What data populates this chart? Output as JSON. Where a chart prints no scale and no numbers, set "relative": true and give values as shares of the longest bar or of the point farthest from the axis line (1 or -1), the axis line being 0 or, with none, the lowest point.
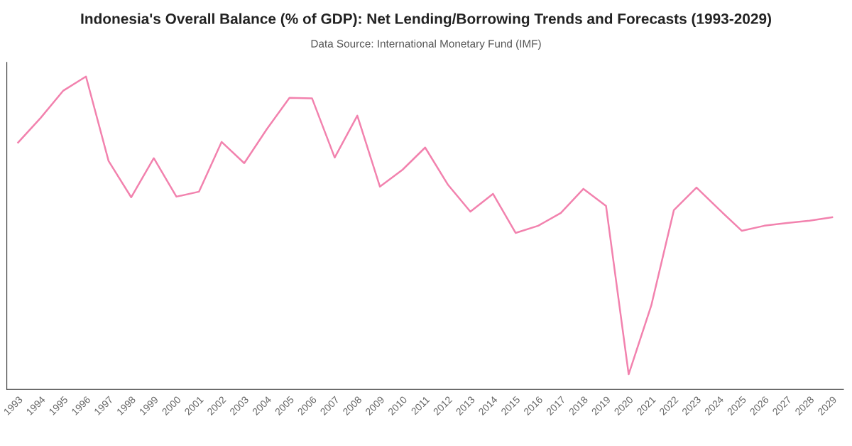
{
  "chart_data": {
    "type": "line",
    "title": "Indonesia's Overall Balance (% of GDP): Net Lending/Borrowing Trends and Forecasts (1993-2029)",
    "annotations": [
      "Data Source: International Monetary Fund (IMF)"
    ],
    "relative": true,
    "color": "#f282ae",
    "grid": false,
    "legend": false,
    "marker": "none",
    "line_style": "solid",
    "categories": [
      "1993",
      "1994",
      "1995",
      "1996",
      "1997",
      "1998",
      "1999",
      "2000",
      "2001",
      "2002",
      "2003",
      "2004",
      "2005",
      "2006",
      "2007",
      "2008",
      "2009",
      "2010",
      "2011",
      "2012",
      "2013",
      "2014",
      "2015",
      "2016",
      "2017",
      "2018",
      "2019",
      "2020",
      "2021",
      "2022",
      "2023",
      "2024",
      "2025",
      "2026",
      "2027",
      "2028",
      "2029"
    ],
    "values": [
      0.789,
      0.868,
      0.955,
      1.0,
      0.73,
      0.614,
      0.739,
      0.616,
      0.632,
      0.791,
      0.723,
      0.832,
      0.932,
      0.93,
      0.741,
      0.875,
      0.648,
      0.702,
      0.773,
      0.655,
      0.568,
      0.625,
      0.5,
      0.523,
      0.564,
      0.641,
      0.586,
      0.048,
      0.268,
      0.573,
      0.645,
      0.575,
      0.507,
      0.523,
      0.532,
      0.539,
      0.55
    ]
  }
}
